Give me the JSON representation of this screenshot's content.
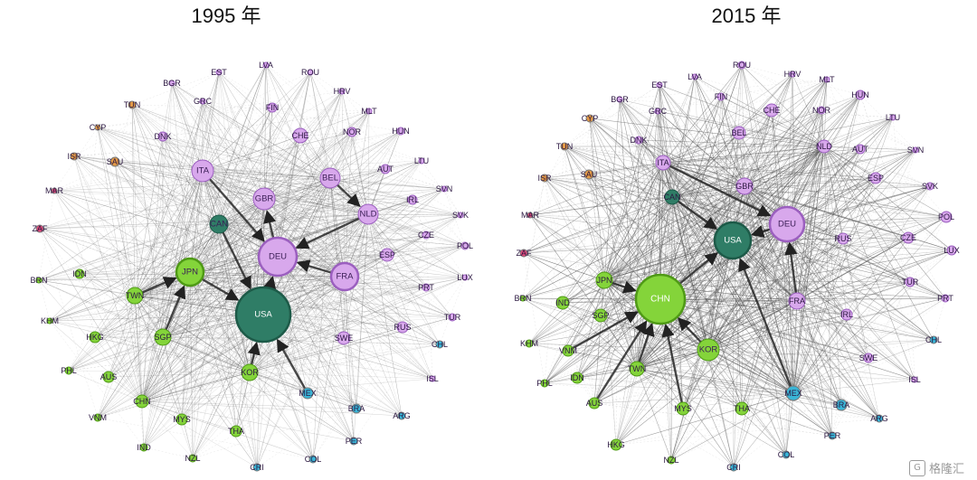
{
  "colors": {
    "purple": "#d8a8ec",
    "purple_stroke": "#9b5fbf",
    "green": "#84d43a",
    "green_stroke": "#4f9a16",
    "teal": "#2f7d66",
    "teal_stroke": "#1d5a48",
    "orange": "#e39a46",
    "blue": "#3ab5d6",
    "pink": "#e14b7b",
    "edge": "#555555"
  },
  "panels": [
    {
      "title": "1995 年",
      "nodes": [
        {
          "id": "USA",
          "c": "teal",
          "r": 30
        },
        {
          "id": "DEU",
          "c": "purple",
          "r": 21
        },
        {
          "id": "JPN",
          "c": "green",
          "r": 15
        },
        {
          "id": "ITA",
          "c": "purple",
          "r": 12
        },
        {
          "id": "GBR",
          "c": "purple",
          "r": 12
        },
        {
          "id": "FRA",
          "c": "purple",
          "r": 15
        },
        {
          "id": "BEL",
          "c": "purple",
          "r": 11
        },
        {
          "id": "NLD",
          "c": "purple",
          "r": 11
        },
        {
          "id": "CAN",
          "c": "teal",
          "r": 10
        },
        {
          "id": "CHE",
          "c": "purple",
          "r": 8
        },
        {
          "id": "TWN",
          "c": "green",
          "r": 9
        },
        {
          "id": "SGP",
          "c": "green",
          "r": 9
        },
        {
          "id": "KOR",
          "c": "green",
          "r": 9
        },
        {
          "id": "CHN",
          "c": "green",
          "r": 7
        },
        {
          "id": "HKG",
          "c": "green",
          "r": 6
        },
        {
          "id": "AUS",
          "c": "green",
          "r": 6
        },
        {
          "id": "MYS",
          "c": "green",
          "r": 6
        },
        {
          "id": "THA",
          "c": "green",
          "r": 6
        },
        {
          "id": "MEX",
          "c": "blue",
          "r": 6
        },
        {
          "id": "SWE",
          "c": "purple",
          "r": 7
        },
        {
          "id": "ESP",
          "c": "purple",
          "r": 7
        },
        {
          "id": "RUS",
          "c": "purple",
          "r": 6
        },
        {
          "id": "AUT",
          "c": "purple",
          "r": 5
        },
        {
          "id": "IRL",
          "c": "purple",
          "r": 5
        },
        {
          "id": "FIN",
          "c": "purple",
          "r": 5
        },
        {
          "id": "NOR",
          "c": "purple",
          "r": 5
        },
        {
          "id": "DNK",
          "c": "purple",
          "r": 5
        },
        {
          "id": "IDN",
          "c": "green",
          "r": 5
        },
        {
          "id": "PHL",
          "c": "green",
          "r": 4
        },
        {
          "id": "BRA",
          "c": "blue",
          "r": 5
        },
        {
          "id": "SAU",
          "c": "orange",
          "r": 5
        },
        {
          "id": "ISR",
          "c": "orange",
          "r": 4
        },
        {
          "id": "TUN",
          "c": "orange",
          "r": 4
        },
        {
          "id": "ZAF",
          "c": "pink",
          "r": 4
        },
        {
          "id": "CZE",
          "c": "purple",
          "r": 4
        },
        {
          "id": "POL",
          "c": "purple",
          "r": 4
        },
        {
          "id": "PRT",
          "c": "purple",
          "r": 4
        },
        {
          "id": "TUR",
          "c": "purple",
          "r": 4
        },
        {
          "id": "HUN",
          "c": "purple",
          "r": 4
        },
        {
          "id": "ARG",
          "c": "blue",
          "r": 4
        },
        {
          "id": "CHL",
          "c": "blue",
          "r": 4
        },
        {
          "id": "COL",
          "c": "blue",
          "r": 4
        },
        {
          "id": "PER",
          "c": "blue",
          "r": 4
        },
        {
          "id": "CRI",
          "c": "blue",
          "r": 4
        },
        {
          "id": "IND",
          "c": "green",
          "r": 4
        },
        {
          "id": "NZL",
          "c": "green",
          "r": 4
        },
        {
          "id": "VNM",
          "c": "green",
          "r": 4
        },
        {
          "id": "KHM",
          "c": "green",
          "r": 3
        },
        {
          "id": "BRN",
          "c": "green",
          "r": 3
        },
        {
          "id": "MAR",
          "c": "pink",
          "r": 3
        },
        {
          "id": "CYP",
          "c": "orange",
          "r": 3
        },
        {
          "id": "GRC",
          "c": "purple",
          "r": 3
        },
        {
          "id": "BGR",
          "c": "purple",
          "r": 3
        },
        {
          "id": "EST",
          "c": "purple",
          "r": 3
        },
        {
          "id": "LVA",
          "c": "purple",
          "r": 3
        },
        {
          "id": "ROU",
          "c": "purple",
          "r": 3
        },
        {
          "id": "HRV",
          "c": "purple",
          "r": 3
        },
        {
          "id": "MLT",
          "c": "purple",
          "r": 3
        },
        {
          "id": "LTU",
          "c": "purple",
          "r": 3
        },
        {
          "id": "SVN",
          "c": "purple",
          "r": 3
        },
        {
          "id": "SVK",
          "c": "purple",
          "r": 3
        },
        {
          "id": "LUX",
          "c": "purple",
          "r": 3
        },
        {
          "id": "ISL",
          "c": "purple",
          "r": 3
        }
      ]
    },
    {
      "title": "2015 年",
      "nodes": [
        {
          "id": "CHN",
          "c": "green",
          "r": 27
        },
        {
          "id": "USA",
          "c": "teal",
          "r": 20
        },
        {
          "id": "DEU",
          "c": "purple",
          "r": 19
        },
        {
          "id": "KOR",
          "c": "green",
          "r": 12
        },
        {
          "id": "JPN",
          "c": "green",
          "r": 9
        },
        {
          "id": "GBR",
          "c": "purple",
          "r": 9
        },
        {
          "id": "FRA",
          "c": "purple",
          "r": 9
        },
        {
          "id": "ITA",
          "c": "purple",
          "r": 8
        },
        {
          "id": "CAN",
          "c": "teal",
          "r": 8
        },
        {
          "id": "MEX",
          "c": "blue",
          "r": 8
        },
        {
          "id": "NLD",
          "c": "purple",
          "r": 7
        },
        {
          "id": "BEL",
          "c": "purple",
          "r": 7
        },
        {
          "id": "CHE",
          "c": "purple",
          "r": 7
        },
        {
          "id": "IND",
          "c": "green",
          "r": 7
        },
        {
          "id": "SGP",
          "c": "green",
          "r": 7
        },
        {
          "id": "TWN",
          "c": "green",
          "r": 8
        },
        {
          "id": "MYS",
          "c": "green",
          "r": 7
        },
        {
          "id": "THA",
          "c": "green",
          "r": 7
        },
        {
          "id": "VNM",
          "c": "green",
          "r": 6
        },
        {
          "id": "AUS",
          "c": "green",
          "r": 6
        },
        {
          "id": "IDN",
          "c": "green",
          "r": 6
        },
        {
          "id": "HKG",
          "c": "green",
          "r": 6
        },
        {
          "id": "RUS",
          "c": "purple",
          "r": 6
        },
        {
          "id": "ESP",
          "c": "purple",
          "r": 6
        },
        {
          "id": "AUT",
          "c": "purple",
          "r": 5
        },
        {
          "id": "POL",
          "c": "purple",
          "r": 6
        },
        {
          "id": "CZE",
          "c": "purple",
          "r": 6
        },
        {
          "id": "IRL",
          "c": "purple",
          "r": 6
        },
        {
          "id": "SWE",
          "c": "purple",
          "r": 5
        },
        {
          "id": "TUR",
          "c": "purple",
          "r": 5
        },
        {
          "id": "BRA",
          "c": "blue",
          "r": 6
        },
        {
          "id": "SAU",
          "c": "orange",
          "r": 5
        },
        {
          "id": "ISR",
          "c": "orange",
          "r": 4
        },
        {
          "id": "TUN",
          "c": "orange",
          "r": 4
        },
        {
          "id": "CYP",
          "c": "orange",
          "r": 4
        },
        {
          "id": "ZAF",
          "c": "pink",
          "r": 4
        },
        {
          "id": "MAR",
          "c": "pink",
          "r": 3
        },
        {
          "id": "BRN",
          "c": "green",
          "r": 3
        },
        {
          "id": "KHM",
          "c": "green",
          "r": 4
        },
        {
          "id": "PHL",
          "c": "green",
          "r": 4
        },
        {
          "id": "NZL",
          "c": "green",
          "r": 4
        },
        {
          "id": "COL",
          "c": "blue",
          "r": 4
        },
        {
          "id": "CRI",
          "c": "blue",
          "r": 4
        },
        {
          "id": "PER",
          "c": "blue",
          "r": 4
        },
        {
          "id": "ARG",
          "c": "blue",
          "r": 4
        },
        {
          "id": "CHL",
          "c": "blue",
          "r": 4
        },
        {
          "id": "ISL",
          "c": "purple",
          "r": 3
        },
        {
          "id": "PRT",
          "c": "purple",
          "r": 4
        },
        {
          "id": "LUX",
          "c": "purple",
          "r": 5
        },
        {
          "id": "SVK",
          "c": "purple",
          "r": 4
        },
        {
          "id": "SVN",
          "c": "purple",
          "r": 3
        },
        {
          "id": "LTU",
          "c": "purple",
          "r": 3
        },
        {
          "id": "HUN",
          "c": "purple",
          "r": 5
        },
        {
          "id": "NOR",
          "c": "purple",
          "r": 4
        },
        {
          "id": "MLT",
          "c": "purple",
          "r": 3
        },
        {
          "id": "HRV",
          "c": "purple",
          "r": 3
        },
        {
          "id": "ROU",
          "c": "purple",
          "r": 4
        },
        {
          "id": "LVA",
          "c": "purple",
          "r": 3
        },
        {
          "id": "EST",
          "c": "purple",
          "r": 3
        },
        {
          "id": "BGR",
          "c": "purple",
          "r": 3
        },
        {
          "id": "GRC",
          "c": "purple",
          "r": 3
        },
        {
          "id": "FIN",
          "c": "purple",
          "r": 4
        },
        {
          "id": "DNK",
          "c": "purple",
          "r": 4
        }
      ]
    }
  ],
  "watermark": {
    "logo": "G",
    "text": "格隆汇"
  }
}
